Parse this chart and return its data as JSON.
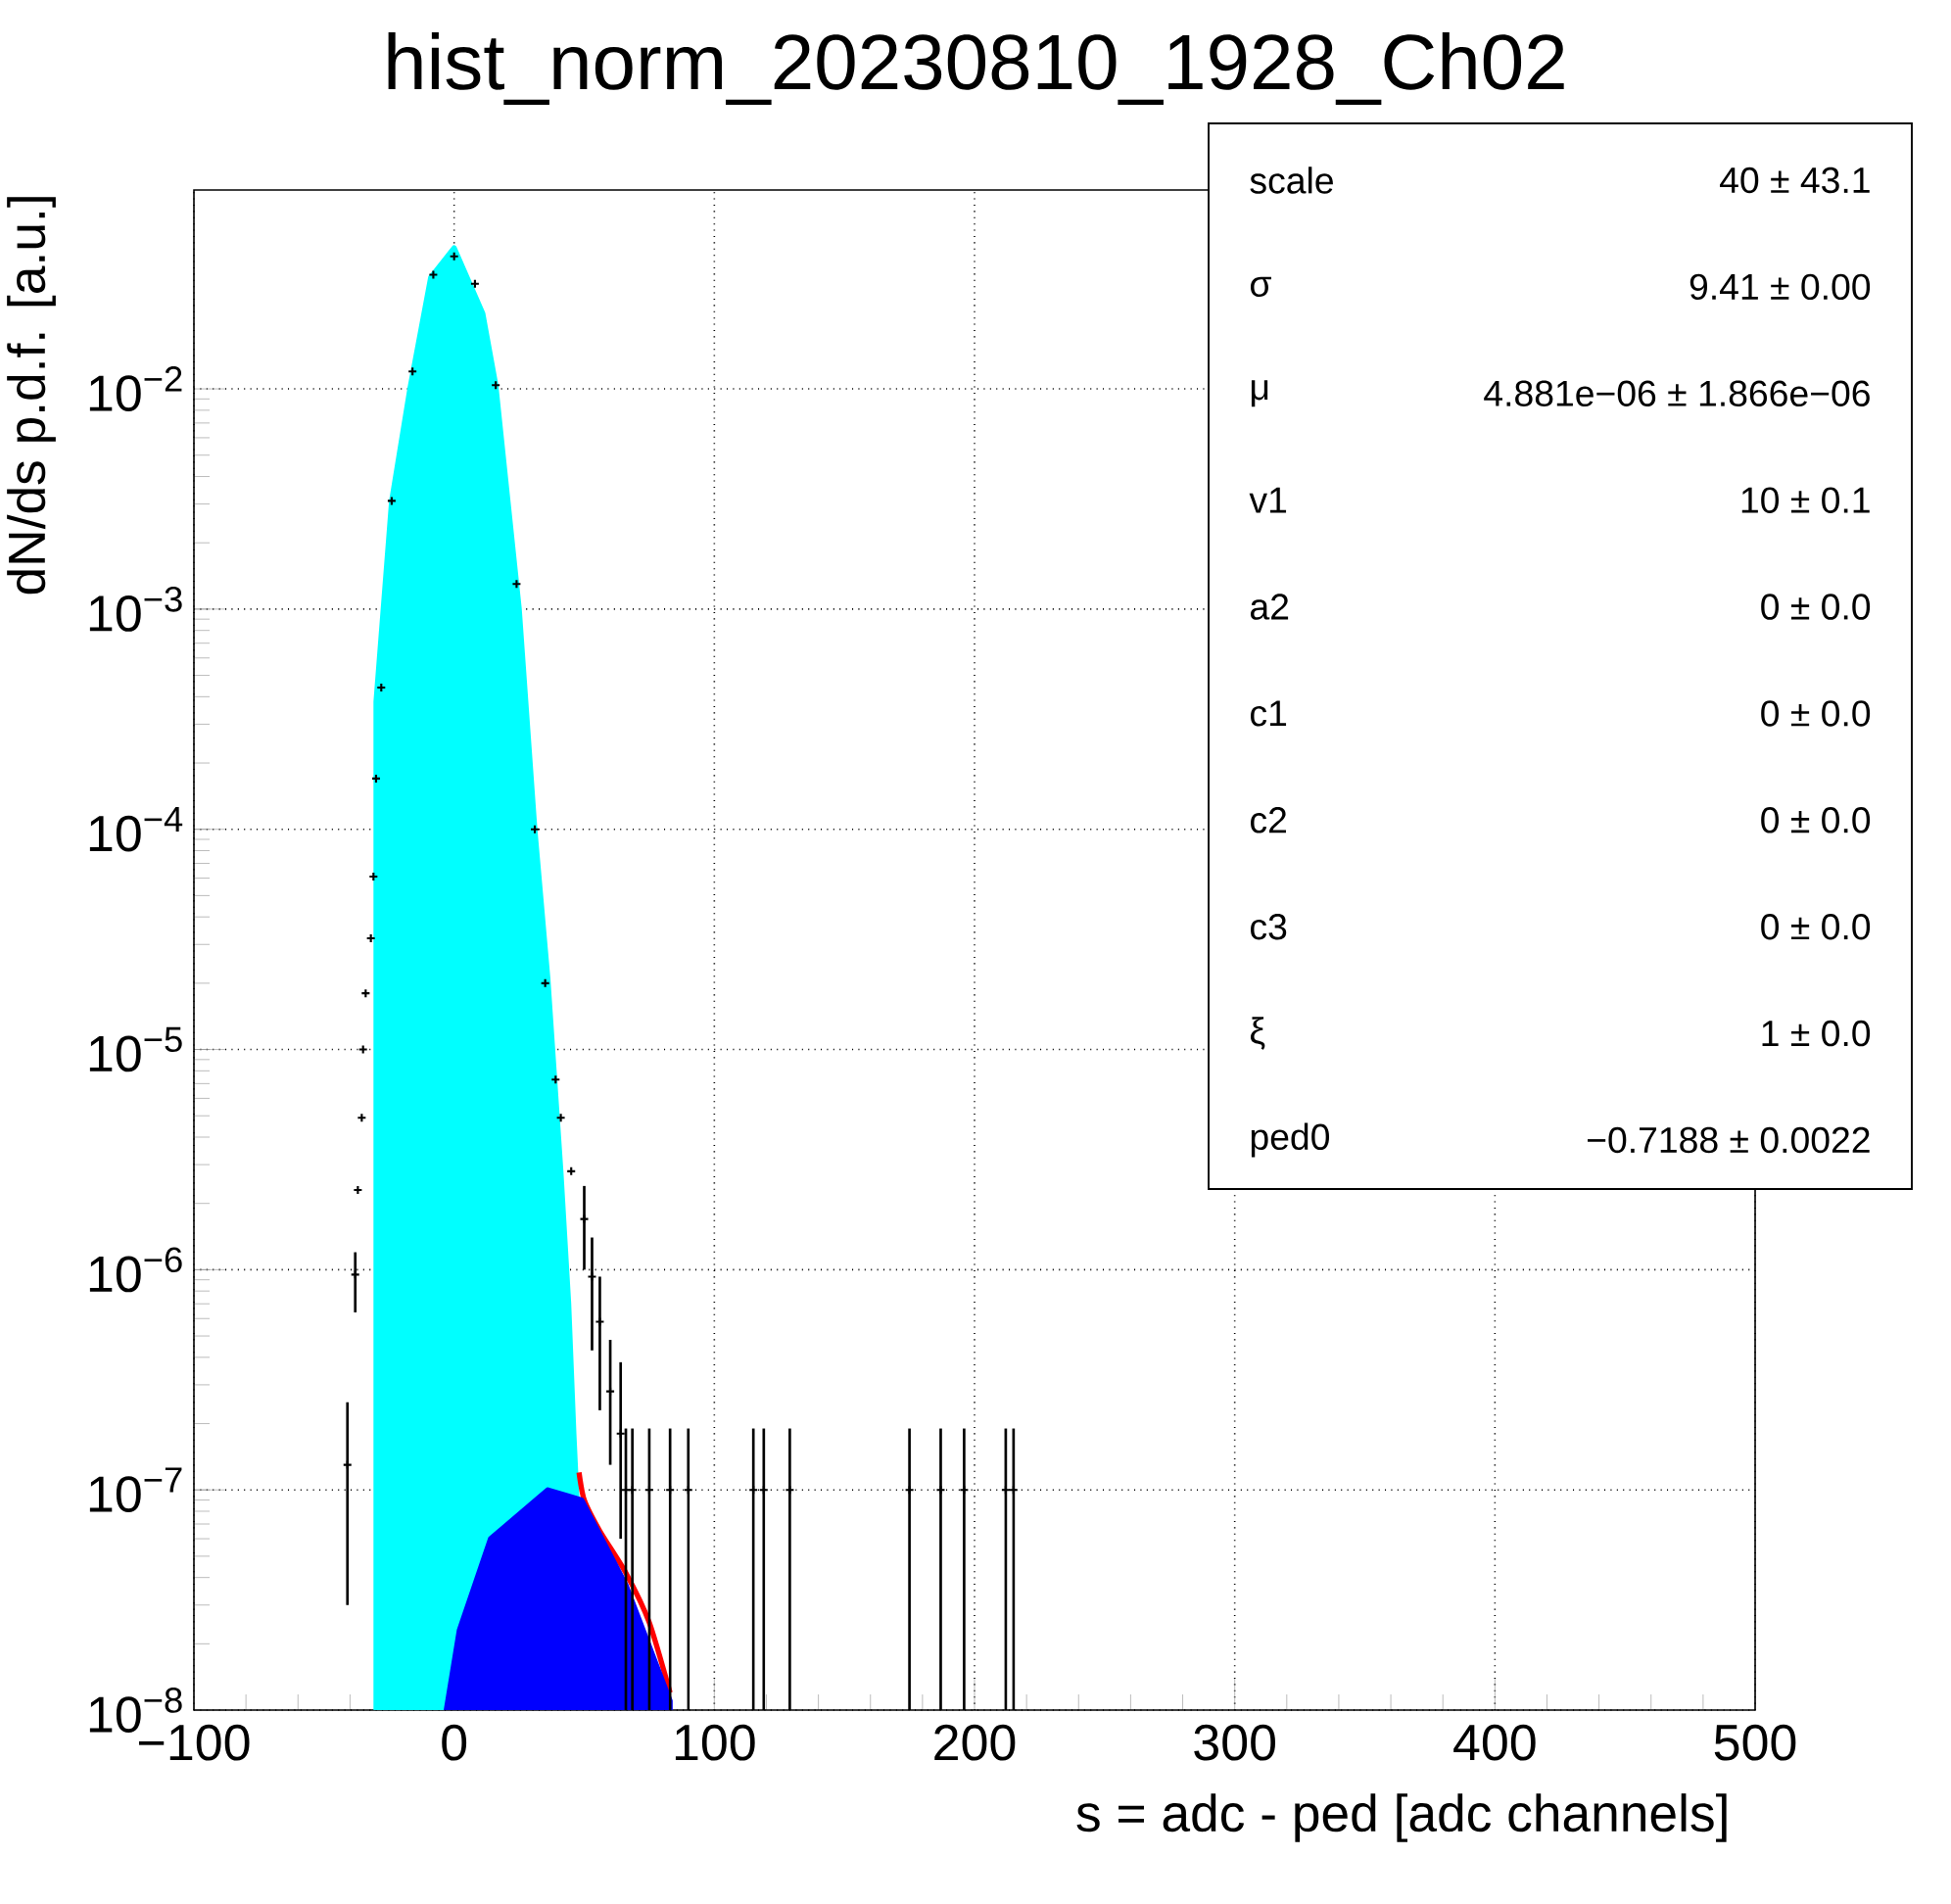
{
  "chart_data": {
    "type": "scatter",
    "title": "hist_norm_20230810_1928_Ch02",
    "xlabel": "s = adc - ped [adc channels]",
    "ylabel": "dN/ds p.d.f. [a.u.]",
    "log": "y",
    "grid": true,
    "xlim": [
      -100,
      500
    ],
    "xticks": [
      {
        "value": -100,
        "label": "−100"
      },
      0,
      100,
      200,
      300,
      400,
      500
    ],
    "ylim": [
      1e-08,
      0.08
    ],
    "yticks": [
      {
        "value": 1e-08,
        "label": "10$^{−8}$"
      },
      {
        "value": 1e-07,
        "label": "10$^{−7}$"
      },
      {
        "value": 1e-06,
        "label": "10$^{−6}$"
      },
      {
        "value": 1e-05,
        "label": "10$^{−5}$"
      },
      {
        "value": 0.0001,
        "label": "10$^{−4}$"
      },
      {
        "value": 0.001,
        "label": "10$^{−3}$"
      },
      {
        "value": 0.01,
        "label": "10$^{−2}$"
      }
    ],
    "series": [
      {
        "color": "#000000",
        "marker": "cross",
        "x": [
          -41,
          -38,
          -37,
          -35.5,
          -35,
          -34,
          -32,
          -31,
          -30,
          -28,
          -24,
          -16,
          -8,
          0,
          8,
          16,
          24,
          31,
          35,
          39,
          41,
          45,
          50,
          53,
          56,
          60,
          64,
          66,
          68.5,
          75,
          83,
          90,
          115,
          119,
          129,
          175,
          187,
          196,
          212,
          215
        ],
        "values": [
          1.3e-07,
          9.5e-07,
          2.3e-06,
          4.9e-06,
          1e-05,
          1.8e-05,
          3.2e-05,
          6.1e-05,
          0.00017,
          0.00044,
          0.0031,
          0.012,
          0.033,
          0.04,
          0.03,
          0.0104,
          0.0013,
          0.0001,
          2e-05,
          7.3e-06,
          4.9e-06,
          2.8e-06,
          1.7e-06,
          9.3e-07,
          5.8e-07,
          2.8e-07,
          1.8e-07,
          1e-07,
          1e-07,
          1e-07,
          1e-07,
          1e-07,
          1e-07,
          1e-07,
          1e-07,
          1e-07,
          1e-07,
          1e-07,
          1e-07,
          1e-07
        ],
        "errors": [
          [
            3e-08,
            2.5e-07
          ],
          [
            6.4e-07,
            1.2e-06
          ],
          null,
          null,
          null,
          null,
          null,
          null,
          null,
          null,
          null,
          null,
          null,
          null,
          null,
          null,
          null,
          null,
          null,
          null,
          null,
          null,
          [
            1e-06,
            2.4e-06
          ],
          [
            4.3e-07,
            1.4e-06
          ],
          [
            2.3e-07,
            9.3e-07
          ],
          [
            1.3e-07,
            4.8e-07
          ],
          [
            6e-08,
            3.8e-07
          ],
          [
            1e-08,
            1.9e-07
          ],
          [
            1e-08,
            1.9e-07
          ],
          [
            1e-08,
            1.9e-07
          ],
          [
            1e-08,
            1.9e-07
          ],
          [
            1e-08,
            1.9e-07
          ],
          [
            1e-08,
            1.9e-07
          ],
          [
            1e-08,
            1.9e-07
          ],
          [
            1e-08,
            1.9e-07
          ],
          [
            1e-08,
            1.9e-07
          ],
          [
            1e-08,
            1.9e-07
          ],
          [
            1e-08,
            1.9e-07
          ],
          [
            1e-08,
            1.9e-07
          ],
          [
            1e-08,
            1.9e-07
          ]
        ]
      },
      {
        "type": "line",
        "color": "#ff0000",
        "x": [
          48,
          50,
          56,
          66,
          75,
          83
        ],
        "values": [
          1.2e-07,
          9e-08,
          6.5e-08,
          4.2e-08,
          2.5e-08,
          1.2e-08
        ]
      },
      {
        "type": "area",
        "color": "#00ffff",
        "x": [
          -30,
          -24,
          -17,
          -9,
          0,
          11,
          16,
          25,
          31,
          36,
          41,
          44,
          46,
          51
        ],
        "values": [
          0.00038,
          0.0031,
          0.01,
          0.032,
          0.0437,
          0.022,
          0.0104,
          0.001,
          0.0001,
          2.1e-05,
          2.8e-06,
          7e-07,
          1.8e-07,
          1e-08
        ]
      },
      {
        "type": "area",
        "color": "#0000ff",
        "x": [
          -3,
          2,
          14,
          36,
          49,
          66,
          83
        ],
        "values": [
          1e-08,
          2.3e-08,
          6e-08,
          1e-07,
          9e-08,
          3.7e-08,
          1.1e-08
        ]
      }
    ],
    "annotations": [
      "scale",
      "40 ± 43.1",
      "σ",
      "9.41 ± 0.00",
      "μ",
      "4.881e−06 ± 1.866e−06",
      "v1",
      "10 ± 0.1",
      "a2",
      "0 ± 0.0",
      "c1",
      "0 ± 0.0",
      "c2",
      "0 ± 0.0",
      "c3",
      "0 ± 0.0",
      "ξ",
      "1 ± 0.0",
      "ped0",
      "−0.7188 ± 0.0022"
    ]
  }
}
